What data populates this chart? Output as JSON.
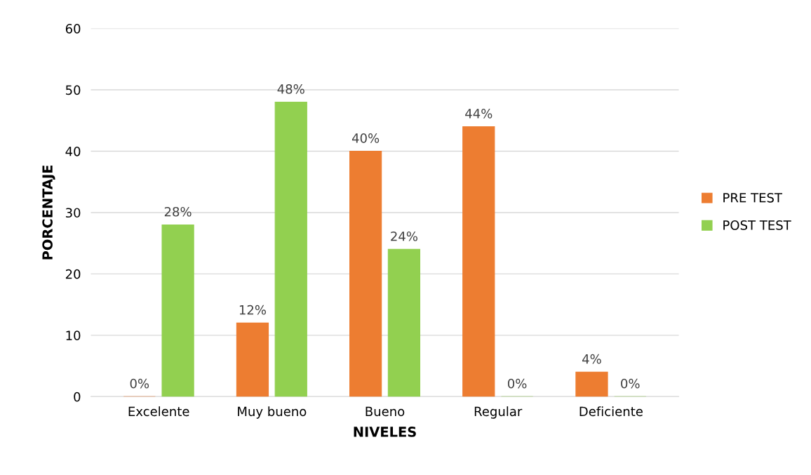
{
  "chart_data": {
    "type": "bar",
    "xlabel": "NIVELES",
    "ylabel": "PORCENTAJE",
    "categories": [
      "Excelente",
      "Muy bueno",
      "Bueno",
      "Regular",
      "Deficiente"
    ],
    "series": [
      {
        "name": "PRE TEST",
        "color": "#ed7d31",
        "values": [
          0,
          12,
          40,
          44,
          4
        ],
        "value_labels": [
          "0%",
          "12%",
          "40%",
          "44%",
          "4%"
        ]
      },
      {
        "name": "POST TEST",
        "color": "#92d050",
        "values": [
          28,
          48,
          24,
          0,
          0
        ],
        "value_labels": [
          "28%",
          "48%",
          "24%",
          "0%",
          "0%"
        ]
      }
    ],
    "ylim": [
      0,
      60
    ],
    "yticks": [
      0,
      10,
      20,
      30,
      40,
      50,
      60
    ],
    "grid": "y",
    "legend": "right"
  }
}
